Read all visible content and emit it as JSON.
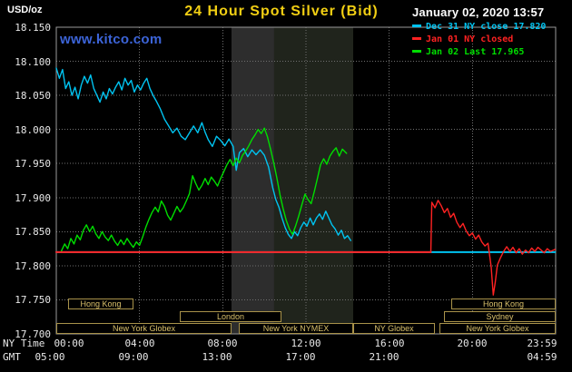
{
  "header": {
    "unit_label": "USD/oz",
    "title": "24 Hour Spot Silver (Bid)",
    "title_color": "#f2cf13",
    "datetime": "January 02, 2020 13:57",
    "watermark": "www.kitco.com",
    "watermark_color": "#3c64d8",
    "legend": [
      {
        "label": "Dec 31 NY close 17.820",
        "color": "#00c3f0"
      },
      {
        "label": "Jan 01 NY closed",
        "color": "#ff2222"
      },
      {
        "label": "Jan 02 Last 17.965",
        "color": "#00dd00"
      }
    ]
  },
  "axes": {
    "ny_label": "NY Time",
    "gmt_label": "GMT",
    "y_ticks": [
      "18.150",
      "18.100",
      "18.050",
      "18.000",
      "17.950",
      "17.900",
      "17.850",
      "17.800",
      "17.750",
      "17.700"
    ],
    "x_ticks_ny": [
      "00:00",
      "04:00",
      "08:00",
      "12:00",
      "16:00",
      "20:00",
      "23:59"
    ],
    "x_ticks_gmt": [
      "05:00",
      "09:00",
      "13:00",
      "17:00",
      "21:00",
      "04:59"
    ]
  },
  "styles": {
    "session_text": "#d9c06b",
    "grid_color": "#707070",
    "frame_color": "#9a9a9a"
  },
  "sessions": [
    {
      "label": "Hong Kong"
    },
    {
      "label": "London"
    },
    {
      "label": "New York Globex"
    },
    {
      "label": "New York NYMEX"
    },
    {
      "label": "NY Globex"
    },
    {
      "label": "Sydney"
    },
    {
      "label": "Hong Kong"
    },
    {
      "label": "New York Globex"
    }
  ],
  "chart_data": {
    "type": "line",
    "title": "24 Hour Spot Silver (Bid)",
    "ylabel": "USD/oz",
    "xlabel": "NY Time",
    "y_axis": {
      "range": [
        17.7,
        18.15
      ],
      "tick_step": 0.05
    },
    "x_axis": {
      "range_hours": [
        0,
        24
      ],
      "ticks_ny": [
        "00:00",
        "04:00",
        "08:00",
        "12:00",
        "16:00",
        "20:00",
        "23:59"
      ],
      "ticks_gmt": [
        "05:00",
        "09:00",
        "13:00",
        "17:00",
        "21:00",
        "04:59"
      ]
    },
    "grid": {
      "y_values": [
        17.75,
        17.8,
        17.85,
        17.9,
        17.95,
        18.0,
        18.05,
        18.1
      ],
      "x_hours": [
        4,
        8,
        12,
        16,
        20
      ]
    },
    "bands": [
      {
        "from_hour": 8.42,
        "to_hour": 10.47,
        "color": "#2d2d2d"
      },
      {
        "from_hour": 10.47,
        "to_hour": 14.27,
        "color": "#20241c"
      }
    ],
    "series": [
      {
        "name": "dec31-close-reference",
        "color": "#00c3f0",
        "width": 2,
        "points": [
          [
            0,
            17.82
          ],
          [
            23.97,
            17.82
          ]
        ]
      },
      {
        "name": "jan01-ny-closed-flat",
        "color": "#ff2222",
        "width": 2,
        "points": [
          [
            0,
            17.82
          ],
          [
            18,
            17.82
          ]
        ]
      },
      {
        "name": "dec31-price",
        "color": "#00c3f0",
        "width": 1.4,
        "points": [
          [
            0,
            18.09
          ],
          [
            0.15,
            18.075
          ],
          [
            0.3,
            18.088
          ],
          [
            0.45,
            18.06
          ],
          [
            0.6,
            18.07
          ],
          [
            0.75,
            18.05
          ],
          [
            0.9,
            18.062
          ],
          [
            1.05,
            18.045
          ],
          [
            1.2,
            18.065
          ],
          [
            1.35,
            18.078
          ],
          [
            1.5,
            18.068
          ],
          [
            1.65,
            18.08
          ],
          [
            1.8,
            18.06
          ],
          [
            1.95,
            18.05
          ],
          [
            2.1,
            18.04
          ],
          [
            2.25,
            18.055
          ],
          [
            2.4,
            18.045
          ],
          [
            2.55,
            18.06
          ],
          [
            2.7,
            18.052
          ],
          [
            2.85,
            18.062
          ],
          [
            3,
            18.07
          ],
          [
            3.15,
            18.058
          ],
          [
            3.3,
            18.075
          ],
          [
            3.45,
            18.065
          ],
          [
            3.6,
            18.072
          ],
          [
            3.75,
            18.055
          ],
          [
            3.9,
            18.065
          ],
          [
            4.05,
            18.058
          ],
          [
            4.2,
            18.068
          ],
          [
            4.35,
            18.075
          ],
          [
            4.5,
            18.06
          ],
          [
            4.65,
            18.05
          ],
          [
            4.8,
            18.042
          ],
          [
            5,
            18.03
          ],
          [
            5.2,
            18.015
          ],
          [
            5.4,
            18.005
          ],
          [
            5.6,
            17.995
          ],
          [
            5.8,
            18.002
          ],
          [
            6,
            17.99
          ],
          [
            6.2,
            17.985
          ],
          [
            6.4,
            17.995
          ],
          [
            6.6,
            18.005
          ],
          [
            6.8,
            17.995
          ],
          [
            7,
            18.01
          ],
          [
            7.15,
            17.996
          ],
          [
            7.3,
            17.985
          ],
          [
            7.5,
            17.975
          ],
          [
            7.7,
            17.99
          ],
          [
            7.9,
            17.984
          ],
          [
            8.1,
            17.976
          ],
          [
            8.3,
            17.986
          ],
          [
            8.5,
            17.975
          ],
          [
            8.65,
            17.94
          ],
          [
            8.8,
            17.966
          ],
          [
            9,
            17.972
          ],
          [
            9.2,
            17.96
          ],
          [
            9.4,
            17.97
          ],
          [
            9.6,
            17.963
          ],
          [
            9.8,
            17.97
          ],
          [
            10,
            17.962
          ],
          [
            10.2,
            17.945
          ],
          [
            10.4,
            17.915
          ],
          [
            10.55,
            17.897
          ],
          [
            10.7,
            17.886
          ],
          [
            10.85,
            17.87
          ],
          [
            11,
            17.856
          ],
          [
            11.15,
            17.846
          ],
          [
            11.3,
            17.84
          ],
          [
            11.45,
            17.85
          ],
          [
            11.6,
            17.844
          ],
          [
            11.75,
            17.856
          ],
          [
            11.9,
            17.864
          ],
          [
            12.05,
            17.858
          ],
          [
            12.2,
            17.87
          ],
          [
            12.35,
            17.86
          ],
          [
            12.5,
            17.87
          ],
          [
            12.65,
            17.876
          ],
          [
            12.8,
            17.868
          ],
          [
            12.95,
            17.88
          ],
          [
            13.1,
            17.87
          ],
          [
            13.25,
            17.86
          ],
          [
            13.4,
            17.854
          ],
          [
            13.55,
            17.845
          ],
          [
            13.7,
            17.852
          ],
          [
            13.85,
            17.84
          ],
          [
            14,
            17.844
          ],
          [
            14.15,
            17.837
          ]
        ]
      },
      {
        "name": "jan02-price",
        "color": "#00dd00",
        "width": 1.4,
        "points": [
          [
            0.25,
            17.822
          ],
          [
            0.4,
            17.832
          ],
          [
            0.55,
            17.825
          ],
          [
            0.7,
            17.84
          ],
          [
            0.85,
            17.832
          ],
          [
            1,
            17.845
          ],
          [
            1.15,
            17.838
          ],
          [
            1.3,
            17.852
          ],
          [
            1.45,
            17.86
          ],
          [
            1.6,
            17.85
          ],
          [
            1.75,
            17.858
          ],
          [
            1.9,
            17.847
          ],
          [
            2.05,
            17.84
          ],
          [
            2.2,
            17.85
          ],
          [
            2.35,
            17.842
          ],
          [
            2.5,
            17.837
          ],
          [
            2.65,
            17.845
          ],
          [
            2.8,
            17.836
          ],
          [
            2.95,
            17.83
          ],
          [
            3.1,
            17.838
          ],
          [
            3.25,
            17.831
          ],
          [
            3.4,
            17.84
          ],
          [
            3.55,
            17.833
          ],
          [
            3.7,
            17.827
          ],
          [
            3.85,
            17.835
          ],
          [
            4,
            17.83
          ],
          [
            4.15,
            17.842
          ],
          [
            4.3,
            17.856
          ],
          [
            4.45,
            17.868
          ],
          [
            4.6,
            17.878
          ],
          [
            4.75,
            17.886
          ],
          [
            4.9,
            17.879
          ],
          [
            5.05,
            17.895
          ],
          [
            5.2,
            17.887
          ],
          [
            5.35,
            17.874
          ],
          [
            5.5,
            17.867
          ],
          [
            5.65,
            17.877
          ],
          [
            5.8,
            17.887
          ],
          [
            5.95,
            17.879
          ],
          [
            6.1,
            17.885
          ],
          [
            6.25,
            17.895
          ],
          [
            6.4,
            17.906
          ],
          [
            6.55,
            17.932
          ],
          [
            6.7,
            17.921
          ],
          [
            6.85,
            17.911
          ],
          [
            7,
            17.918
          ],
          [
            7.15,
            17.928
          ],
          [
            7.3,
            17.919
          ],
          [
            7.45,
            17.93
          ],
          [
            7.6,
            17.924
          ],
          [
            7.75,
            17.917
          ],
          [
            7.9,
            17.928
          ],
          [
            8.05,
            17.938
          ],
          [
            8.2,
            17.948
          ],
          [
            8.35,
            17.956
          ],
          [
            8.5,
            17.947
          ],
          [
            8.65,
            17.958
          ],
          [
            8.8,
            17.951
          ],
          [
            8.95,
            17.962
          ],
          [
            9.1,
            17.968
          ],
          [
            9.25,
            17.976
          ],
          [
            9.4,
            17.985
          ],
          [
            9.55,
            17.992
          ],
          [
            9.7,
            18
          ],
          [
            9.85,
            17.994
          ],
          [
            10,
            18.002
          ],
          [
            10.15,
            17.989
          ],
          [
            10.3,
            17.971
          ],
          [
            10.45,
            17.951
          ],
          [
            10.6,
            17.929
          ],
          [
            10.75,
            17.904
          ],
          [
            10.9,
            17.884
          ],
          [
            11.05,
            17.867
          ],
          [
            11.2,
            17.854
          ],
          [
            11.35,
            17.846
          ],
          [
            11.5,
            17.858
          ],
          [
            11.65,
            17.873
          ],
          [
            11.8,
            17.889
          ],
          [
            11.95,
            17.905
          ],
          [
            12.1,
            17.897
          ],
          [
            12.25,
            17.891
          ],
          [
            12.4,
            17.909
          ],
          [
            12.55,
            17.928
          ],
          [
            12.7,
            17.948
          ],
          [
            12.85,
            17.957
          ],
          [
            13,
            17.949
          ],
          [
            13.15,
            17.961
          ],
          [
            13.3,
            17.968
          ],
          [
            13.45,
            17.973
          ],
          [
            13.6,
            17.961
          ],
          [
            13.75,
            17.971
          ],
          [
            13.95,
            17.965
          ]
        ]
      },
      {
        "name": "jan01-globex-price",
        "color": "#ff2222",
        "width": 1.4,
        "points": [
          [
            18,
            17.82
          ],
          [
            18.05,
            17.893
          ],
          [
            18.2,
            17.885
          ],
          [
            18.35,
            17.896
          ],
          [
            18.5,
            17.888
          ],
          [
            18.65,
            17.878
          ],
          [
            18.8,
            17.884
          ],
          [
            18.95,
            17.871
          ],
          [
            19.1,
            17.877
          ],
          [
            19.25,
            17.864
          ],
          [
            19.4,
            17.856
          ],
          [
            19.55,
            17.862
          ],
          [
            19.7,
            17.851
          ],
          [
            19.85,
            17.844
          ],
          [
            20,
            17.848
          ],
          [
            20.15,
            17.839
          ],
          [
            20.3,
            17.845
          ],
          [
            20.45,
            17.835
          ],
          [
            20.6,
            17.829
          ],
          [
            20.75,
            17.833
          ],
          [
            20.9,
            17.798
          ],
          [
            21,
            17.757
          ],
          [
            21.1,
            17.776
          ],
          [
            21.2,
            17.801
          ],
          [
            21.35,
            17.812
          ],
          [
            21.5,
            17.821
          ],
          [
            21.65,
            17.828
          ],
          [
            21.8,
            17.821
          ],
          [
            21.95,
            17.827
          ],
          [
            22.1,
            17.819
          ],
          [
            22.25,
            17.825
          ],
          [
            22.4,
            17.817
          ],
          [
            22.55,
            17.823
          ],
          [
            22.7,
            17.819
          ],
          [
            22.85,
            17.826
          ],
          [
            23,
            17.821
          ],
          [
            23.15,
            17.827
          ],
          [
            23.3,
            17.823
          ],
          [
            23.45,
            17.819
          ],
          [
            23.6,
            17.825
          ],
          [
            23.75,
            17.821
          ],
          [
            23.97,
            17.824
          ]
        ]
      }
    ]
  }
}
